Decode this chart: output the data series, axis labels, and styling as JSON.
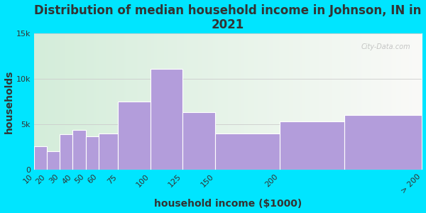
{
  "title": "Distribution of median household income in Johnson, IN in\n2021",
  "xlabel": "household income ($1000)",
  "ylabel": "households",
  "bar_color": "#b39ddb",
  "bar_edge_color": "#ffffff",
  "background_outer": "#00e5ff",
  "background_inner_left": "#d4edda",
  "background_inner_right": "#f8f8f4",
  "edges": [
    10,
    20,
    30,
    40,
    50,
    60,
    75,
    100,
    125,
    150,
    200,
    250,
    310
  ],
  "values": [
    2600,
    2000,
    3900,
    4400,
    3700,
    4000,
    7500,
    11100,
    6300,
    4000,
    5300,
    6000
  ],
  "xtick_positions": [
    10,
    20,
    30,
    40,
    50,
    60,
    75,
    100,
    125,
    150,
    200,
    310
  ],
  "xtick_labels": [
    "10",
    "20",
    "30",
    "40",
    "50",
    "60",
    "75",
    "100",
    "125",
    "150",
    "200",
    "> 200"
  ],
  "ylim": [
    0,
    15000
  ],
  "yticks": [
    0,
    5000,
    10000,
    15000
  ],
  "ytick_labels": [
    "0",
    "5k",
    "10k",
    "15k"
  ],
  "watermark": "City-Data.com",
  "title_fontsize": 12,
  "axis_label_fontsize": 10,
  "tick_fontsize": 8
}
